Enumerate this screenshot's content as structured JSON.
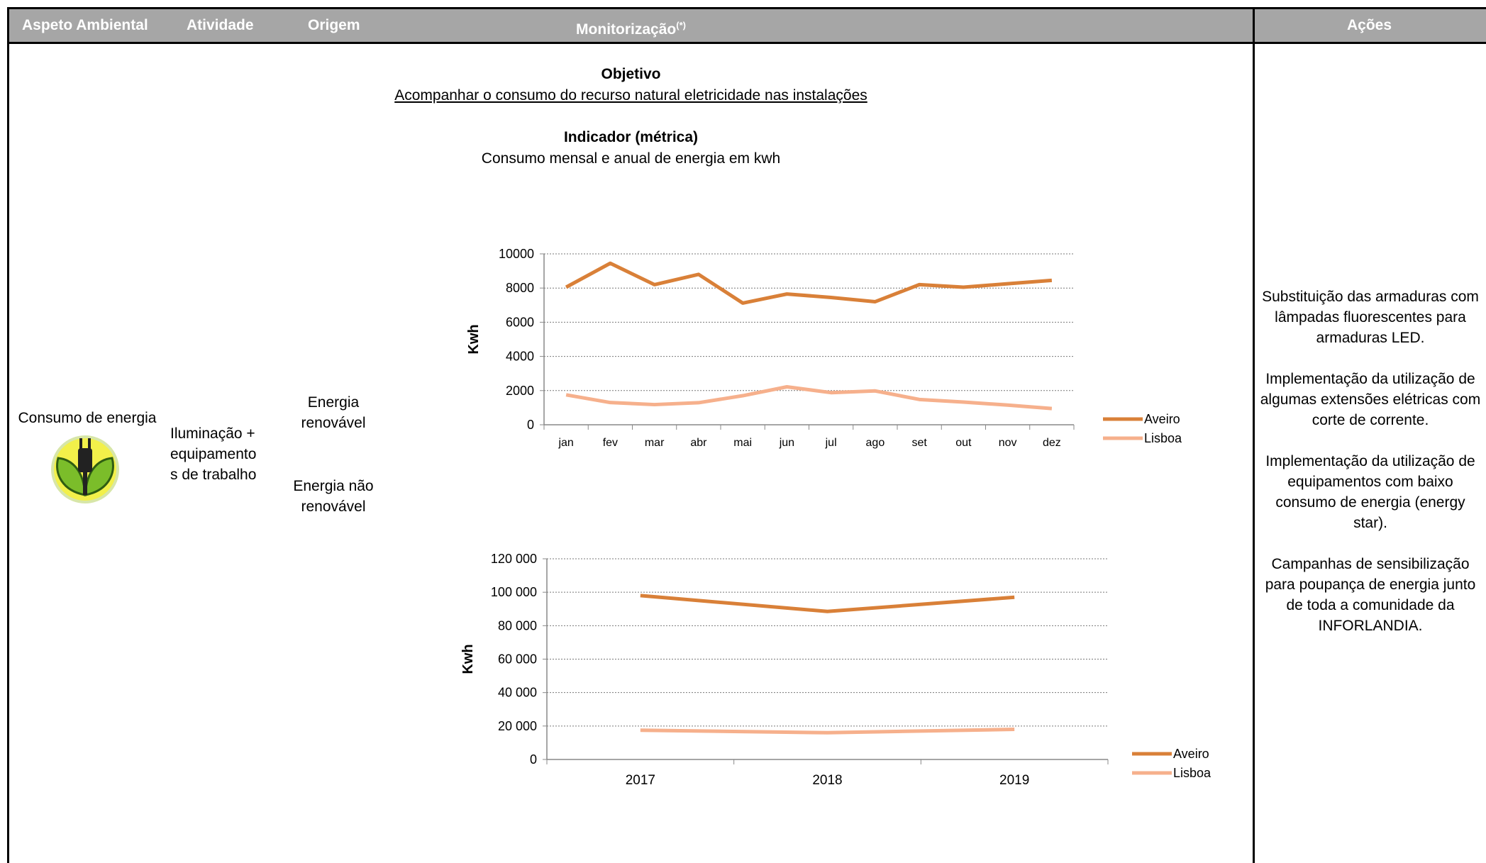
{
  "header": {
    "col1": "Aspeto Ambiental",
    "col2": "Atividade",
    "col3": "Origem",
    "col4": "Monitorização",
    "col4_sup": "(*)",
    "col5": "Ações"
  },
  "row": {
    "aspect": "Consumo de energia",
    "aspect_icon": "energy-plug-leaves-icon",
    "activity": [
      "Iluminação +",
      "equipamento",
      "s de trabalho"
    ],
    "origin_renewable": [
      "Energia",
      "renovável"
    ],
    "origin_nonrenewable": [
      "Energia não",
      "renovável"
    ]
  },
  "monitoring": {
    "objective_title": "Objetivo",
    "objective_text": "Acompanhar o consumo do recurso natural eletricidade nas instalações",
    "indicator_title": "Indicador (métrica)",
    "indicator_text": "Consumo mensal e anual de energia em kwh"
  },
  "actions": [
    [
      "Substituição das armaduras com",
      "lâmpadas fluorescentes para",
      "armaduras LED."
    ],
    [
      "Implementação da utilização de",
      "algumas extensões elétricas com",
      "corte de corrente."
    ],
    [
      "Implementação da utilização de",
      "equipamentos com baixo",
      "consumo de energia (energy",
      "star)."
    ],
    [
      "Campanhas de sensibilização",
      "para poupança de energia junto",
      "de toda a comunidade da",
      "INFORLANDIA."
    ]
  ],
  "chart_data": [
    {
      "type": "line",
      "categories": [
        "jan",
        "fev",
        "mar",
        "abr",
        "mai",
        "jun",
        "jul",
        "ago",
        "set",
        "out",
        "nov",
        "dez"
      ],
      "series": [
        {
          "name": "Aveiro",
          "color": "#d98038",
          "values": [
            8050,
            9450,
            8200,
            8800,
            7120,
            7650,
            7450,
            7200,
            8200,
            8050,
            8250,
            8450
          ]
        },
        {
          "name": "Lisboa",
          "color": "#f6b08c",
          "values": [
            1750,
            1300,
            1180,
            1290,
            1700,
            2220,
            1880,
            1980,
            1480,
            1330,
            1150,
            950
          ]
        }
      ],
      "ylabel": "Kwh",
      "ylim": [
        0,
        10000
      ],
      "yticks": [
        "0",
        "2000",
        "4000",
        "6000",
        "8000",
        "10000"
      ],
      "grid": true,
      "legend": "right"
    },
    {
      "type": "line",
      "categories": [
        "2017",
        "2018",
        "2019"
      ],
      "series": [
        {
          "name": "Aveiro",
          "color": "#d98038",
          "values": [
            98000,
            88500,
            97000
          ]
        },
        {
          "name": "Lisboa",
          "color": "#f6b08c",
          "values": [
            17500,
            16000,
            18000
          ]
        }
      ],
      "ylabel": "Kwh",
      "ylim": [
        0,
        120000
      ],
      "yticks": [
        "0",
        "20 000",
        "40 000",
        "60 000",
        "80 000",
        "100 000",
        "120 000"
      ],
      "grid": true,
      "legend": "right"
    }
  ]
}
